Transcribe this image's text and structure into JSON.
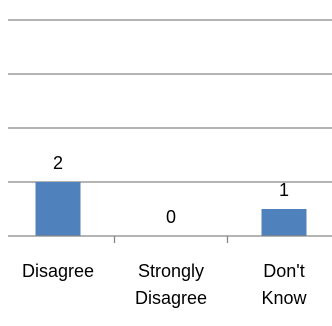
{
  "chart_data": {
    "type": "bar",
    "categories": [
      "Disagree",
      "Strongly Disagree",
      "Don't Know"
    ],
    "tick_labels": [
      [
        "Disagree"
      ],
      [
        "Strongly",
        "Disagree"
      ],
      [
        "Don't",
        "Know"
      ]
    ],
    "values": [
      2,
      0,
      1
    ],
    "data_labels": [
      "2",
      "0",
      "1"
    ],
    "ylim": [
      0,
      10
    ],
    "grid": true,
    "legend": "none",
    "colors": {
      "bar": "#4f81bd",
      "grid": "#868686",
      "axis": "#868686"
    }
  }
}
